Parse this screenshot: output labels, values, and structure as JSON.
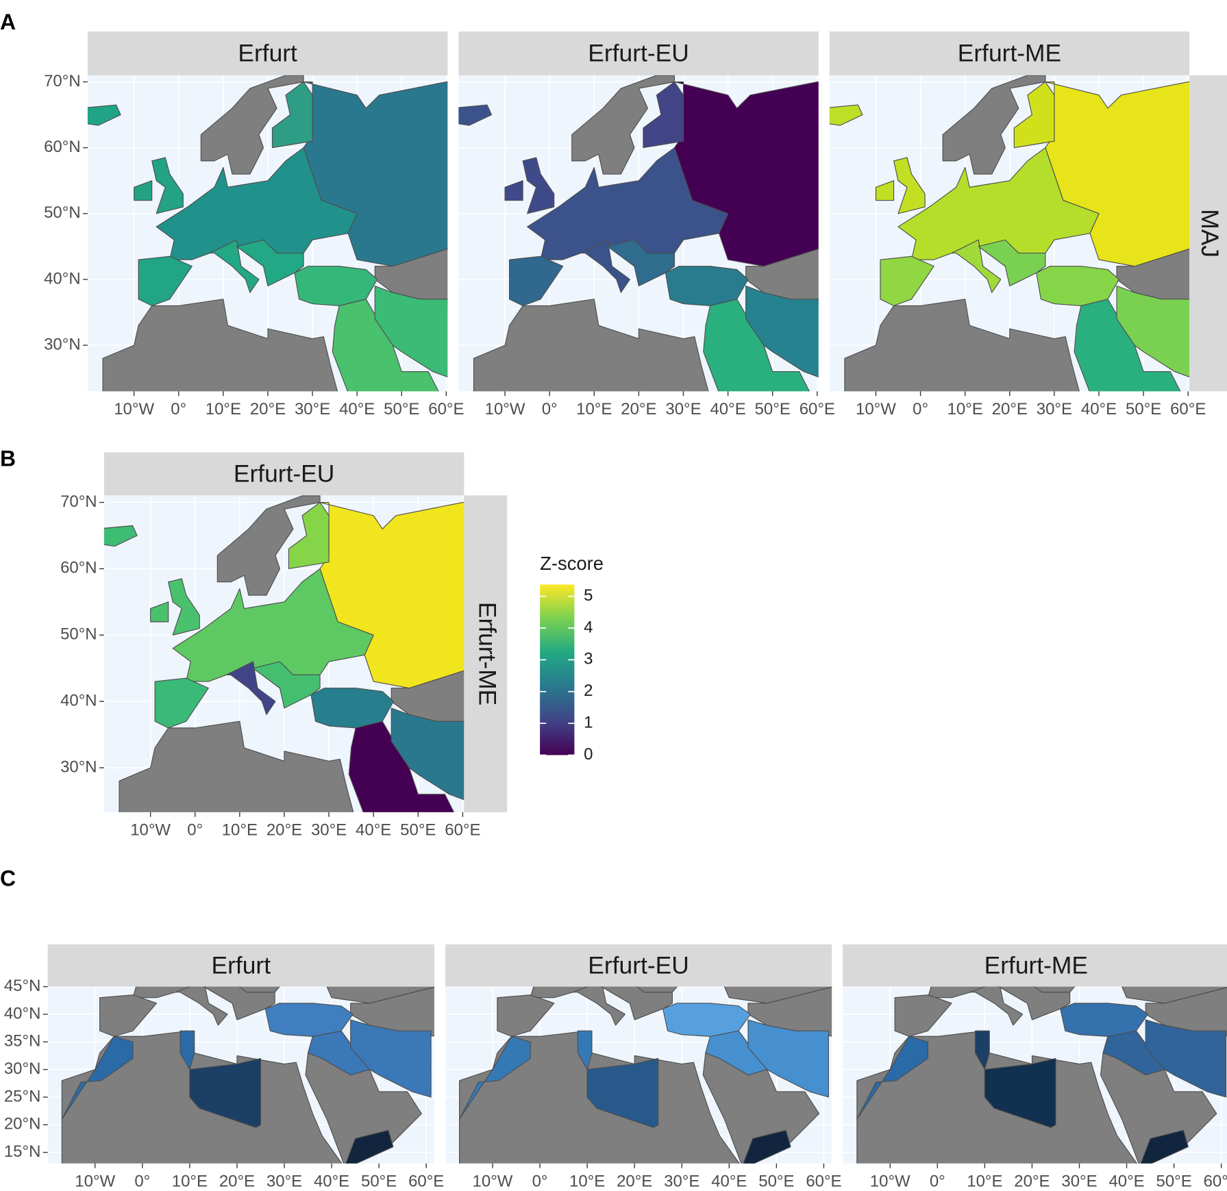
{
  "figure": {
    "panels": [
      {
        "label": "A",
        "facets": [
          "Erfurt",
          "Erfurt-EU",
          "Erfurt-ME"
        ],
        "row_label": "MAJ",
        "xlim": [
          -20.4,
          60.3
        ],
        "ylim": [
          23,
          71
        ],
        "xticks": [
          {
            "value": -10,
            "label": "10°W"
          },
          {
            "value": 0,
            "label": "0°"
          },
          {
            "value": 10,
            "label": "10°E"
          },
          {
            "value": 20,
            "label": "20°E"
          },
          {
            "value": 30,
            "label": "30°E"
          },
          {
            "value": 40,
            "label": "40°E"
          },
          {
            "value": 50,
            "label": "50°E"
          },
          {
            "value": 60,
            "label": "60°E"
          }
        ],
        "yticks": [
          {
            "value": 30,
            "label": "30°N"
          },
          {
            "value": 40,
            "label": "40°N"
          },
          {
            "value": 50,
            "label": "50°N"
          },
          {
            "value": 60,
            "label": "60°N"
          },
          {
            "value": 70,
            "label": "70°N"
          }
        ]
      },
      {
        "label": "B",
        "facets": [
          "Erfurt-EU"
        ],
        "row_label": "Erfurt-ME",
        "xlim": [
          -20.4,
          60.3
        ],
        "ylim": [
          23.3,
          71.06
        ],
        "xticks": [
          {
            "value": -10,
            "label": "10°W"
          },
          {
            "value": 0,
            "label": "0°"
          },
          {
            "value": 10,
            "label": "10°E"
          },
          {
            "value": 20,
            "label": "20°E"
          },
          {
            "value": 30,
            "label": "30°E"
          },
          {
            "value": 40,
            "label": "40°E"
          },
          {
            "value": 50,
            "label": "50°E"
          },
          {
            "value": 60,
            "label": "60°E"
          }
        ],
        "yticks": [
          {
            "value": 30,
            "label": "30°N"
          },
          {
            "value": 40,
            "label": "40°N"
          },
          {
            "value": 50,
            "label": "50°N"
          },
          {
            "value": 60,
            "label": "60°N"
          },
          {
            "value": 70,
            "label": "70°N"
          }
        ]
      },
      {
        "label": "C",
        "facets": [
          "Erfurt",
          "Erfurt-EU",
          "Erfurt-ME"
        ],
        "xlim": [
          -20,
          61.7
        ],
        "ylim": [
          13,
          45
        ],
        "xticks": [
          {
            "value": -10,
            "label": "10°W"
          },
          {
            "value": 0,
            "label": "0°"
          },
          {
            "value": 10,
            "label": "10°E"
          },
          {
            "value": 20,
            "label": "20°E"
          },
          {
            "value": 30,
            "label": "30°E"
          },
          {
            "value": 40,
            "label": "40°E"
          },
          {
            "value": 50,
            "label": "50°E"
          },
          {
            "value": 60,
            "label": "60°E"
          }
        ],
        "yticks": [
          {
            "value": 15,
            "label": "15°N"
          },
          {
            "value": 20,
            "label": "20°N"
          },
          {
            "value": 25,
            "label": "25°N"
          },
          {
            "value": 30,
            "label": "30°N"
          },
          {
            "value": 35,
            "label": "35°N"
          },
          {
            "value": 40,
            "label": "40°N"
          },
          {
            "value": 45,
            "label": "45°N"
          }
        ]
      }
    ],
    "legend": {
      "title": "Z-score",
      "limits": [
        0,
        5.37
      ],
      "ticks": [
        0,
        1,
        2,
        3,
        4,
        5
      ]
    }
  }
}
